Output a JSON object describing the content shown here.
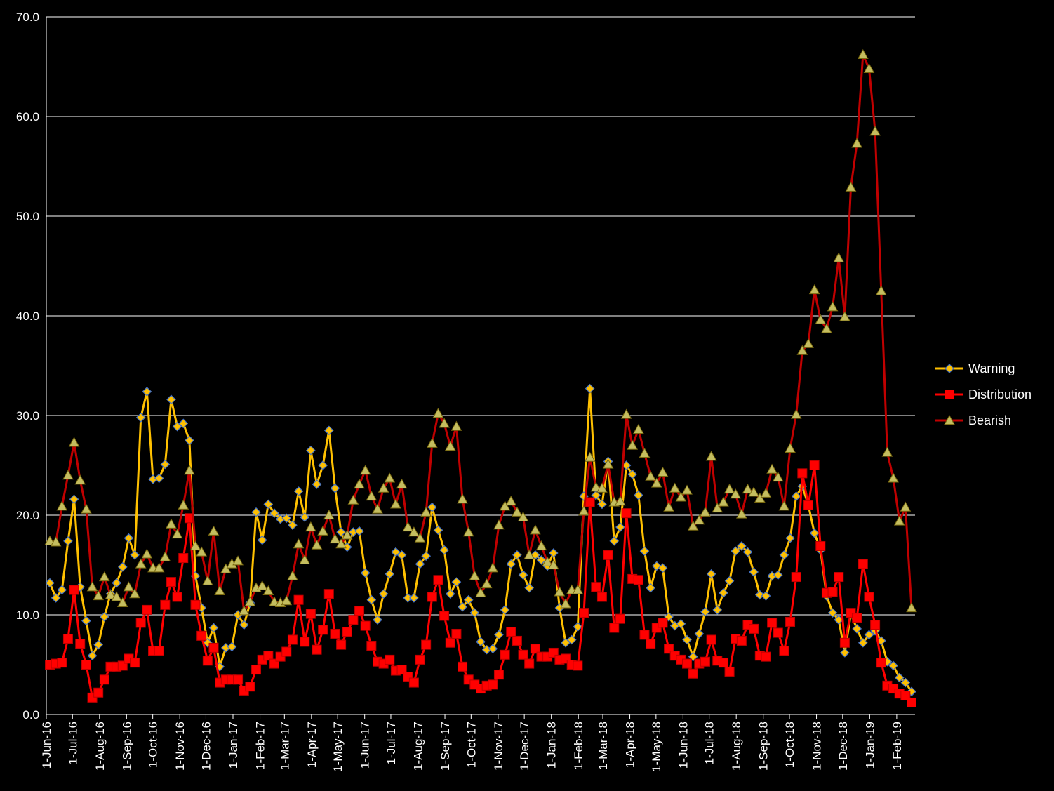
{
  "chart_data": {
    "type": "line",
    "title": "",
    "xlabel": "",
    "ylabel": "",
    "ylim": [
      0,
      70
    ],
    "yticks": [
      0,
      10,
      20,
      30,
      40,
      50,
      60,
      70
    ],
    "ytick_labels": [
      "0.0",
      "10.0",
      "20.0",
      "30.0",
      "40.0",
      "50.0",
      "60.0",
      "70.0"
    ],
    "grid": "horizontal",
    "legend": "right",
    "background": "#000000",
    "x_start": "2016-06-01",
    "x_end": "2019-02-22",
    "x_tick_labels": [
      "1-Jun-16",
      "1-Jul-16",
      "1-Aug-16",
      "1-Sep-16",
      "1-Oct-16",
      "1-Nov-16",
      "1-Dec-16",
      "1-Jan-17",
      "1-Feb-17",
      "1-Mar-17",
      "1-Apr-17",
      "1-May-17",
      "1-Jun-17",
      "1-Jul-17",
      "1-Aug-17",
      "1-Sep-17",
      "1-Oct-17",
      "1-Nov-17",
      "1-Dec-17",
      "1-Jan-18",
      "1-Feb-18",
      "1-Mar-18",
      "1-Apr-18",
      "1-May-18",
      "1-Jun-18",
      "1-Jul-18",
      "1-Aug-18",
      "1-Sep-18",
      "1-Oct-18",
      "1-Nov-18",
      "1-Dec-18",
      "1-Jan-19",
      "1-Feb-19"
    ],
    "x_tick_dates": [
      "2016-06-01",
      "2016-07-01",
      "2016-08-01",
      "2016-09-01",
      "2016-10-01",
      "2016-11-01",
      "2016-12-01",
      "2017-01-01",
      "2017-02-01",
      "2017-03-01",
      "2017-04-01",
      "2017-05-01",
      "2017-06-01",
      "2017-07-01",
      "2017-08-01",
      "2017-09-01",
      "2017-10-01",
      "2017-11-01",
      "2017-12-01",
      "2018-01-01",
      "2018-02-01",
      "2018-03-01",
      "2018-04-01",
      "2018-05-01",
      "2018-06-01",
      "2018-07-01",
      "2018-08-01",
      "2018-09-01",
      "2018-10-01",
      "2018-11-01",
      "2018-12-01",
      "2019-01-01",
      "2019-02-01"
    ],
    "series": [
      {
        "name": "Warning",
        "color": "#FFC000",
        "marker": "diamond",
        "values": [
          13.2,
          11.7,
          12.5,
          17.4,
          21.6,
          12.8,
          9.4,
          5.9,
          7.0,
          9.8,
          12.1,
          13.2,
          14.8,
          17.7,
          16.0,
          29.8,
          32.4,
          23.6,
          23.7,
          25.1,
          31.6,
          28.9,
          29.2,
          27.5,
          13.9,
          10.7,
          7.2,
          8.7,
          4.8,
          6.7,
          6.8,
          10.0,
          9.0,
          11.2,
          20.3,
          17.5,
          21.1,
          20.2,
          19.6,
          19.7,
          19.0,
          22.4,
          19.8,
          26.5,
          23.1,
          25.0,
          28.5,
          22.7,
          18.3,
          16.8,
          18.3,
          18.4,
          14.2,
          11.5,
          9.5,
          12.1,
          14.1,
          16.3,
          16.0,
          11.7,
          11.7,
          15.1,
          15.9,
          20.8,
          18.5,
          16.5,
          12.1,
          13.3,
          10.8,
          11.5,
          10.2,
          7.3,
          6.5,
          6.6,
          8.0,
          10.5,
          15.1,
          16.0,
          14.0,
          12.7,
          16.0,
          15.5,
          14.9,
          16.2,
          10.7,
          7.2,
          7.5,
          8.8,
          21.9,
          32.7,
          22.0,
          21.1,
          25.4,
          17.4,
          18.8,
          25.0,
          24.1,
          22.0,
          16.4,
          12.7,
          14.9,
          14.7,
          9.8,
          8.9,
          9.1,
          7.5,
          5.8,
          8.1,
          10.3,
          14.1,
          10.5,
          12.2,
          13.4,
          16.4,
          16.9,
          16.3,
          14.3,
          12.0,
          11.9,
          13.9,
          14.0,
          16.0,
          17.7,
          21.9,
          22.9,
          21.0,
          18.2,
          16.5,
          11.9,
          10.2,
          9.5,
          6.2,
          10.1,
          8.6,
          7.2,
          8.0,
          8.4,
          7.4,
          5.3,
          4.9,
          3.7,
          3.2,
          2.3
        ]
      },
      {
        "name": "Distribution",
        "color": "#FF0000",
        "marker": "square",
        "values": [
          5.0,
          5.1,
          5.2,
          7.6,
          12.5,
          7.1,
          5.0,
          1.7,
          2.2,
          3.5,
          4.8,
          4.8,
          4.9,
          5.6,
          5.2,
          9.2,
          10.5,
          6.4,
          6.4,
          11.0,
          13.3,
          11.8,
          15.7,
          19.7,
          11.0,
          7.9,
          5.4,
          6.7,
          3.2,
          3.5,
          3.5,
          3.5,
          2.4,
          2.8,
          4.5,
          5.5,
          5.9,
          5.1,
          5.8,
          6.3,
          7.5,
          11.5,
          7.3,
          10.1,
          6.5,
          8.5,
          12.1,
          8.1,
          7.0,
          8.3,
          9.5,
          10.4,
          8.9,
          6.9,
          5.3,
          5.1,
          5.5,
          4.4,
          4.5,
          3.8,
          3.2,
          5.5,
          7.0,
          11.8,
          13.5,
          9.9,
          7.2,
          8.1,
          4.8,
          3.5,
          3.0,
          2.6,
          2.9,
          3.0,
          4.0,
          6.0,
          8.3,
          7.4,
          6.0,
          5.1,
          6.6,
          5.8,
          5.8,
          6.2,
          5.5,
          5.6,
          5.0,
          4.9,
          10.2,
          21.3,
          12.8,
          11.8,
          16.0,
          8.7,
          9.6,
          20.2,
          13.6,
          13.5,
          8.0,
          7.1,
          8.7,
          9.2,
          6.6,
          5.9,
          5.5,
          5.1,
          4.1,
          5.1,
          5.3,
          7.5,
          5.4,
          5.2,
          4.3,
          7.6,
          7.4,
          9.0,
          8.6,
          5.9,
          5.8,
          9.2,
          8.2,
          6.4,
          9.3,
          13.8,
          24.2,
          21.0,
          25.0,
          16.9,
          12.2,
          12.3,
          13.8,
          7.2,
          10.2,
          9.7,
          15.1,
          11.8,
          9.0,
          5.2,
          2.9,
          2.6,
          2.1,
          1.9,
          1.2
        ]
      },
      {
        "name": "Bearish",
        "color": "#C00000",
        "marker": "triangle",
        "values": [
          17.4,
          17.3,
          20.9,
          24.0,
          27.3,
          23.5,
          20.6,
          12.8,
          11.9,
          13.8,
          12.0,
          11.8,
          11.2,
          12.8,
          12.1,
          15.1,
          16.1,
          14.7,
          14.7,
          15.8,
          19.1,
          18.1,
          21.0,
          24.5,
          16.9,
          16.3,
          13.4,
          18.4,
          12.4,
          14.6,
          15.1,
          15.4,
          10.4,
          11.3,
          12.7,
          12.9,
          12.4,
          11.3,
          11.2,
          11.4,
          13.9,
          17.1,
          15.5,
          18.8,
          17.0,
          18.4,
          20.0,
          17.6,
          17.1,
          18.0,
          21.5,
          23.1,
          24.5,
          21.9,
          20.6,
          22.7,
          23.7,
          21.1,
          23.1,
          18.8,
          18.3,
          17.7,
          20.3,
          27.2,
          30.2,
          29.2,
          26.9,
          28.9,
          21.6,
          18.3,
          13.9,
          12.2,
          13.1,
          14.7,
          19.0,
          20.9,
          21.4,
          20.3,
          19.8,
          16.0,
          18.5,
          16.9,
          15.3,
          15.0,
          12.3,
          11.1,
          12.5,
          12.5,
          20.4,
          25.8,
          22.8,
          22.7,
          25.1,
          21.3,
          21.4,
          30.1,
          27.0,
          28.6,
          26.2,
          23.9,
          23.2,
          24.3,
          20.8,
          22.7,
          21.8,
          22.5,
          18.9,
          19.5,
          20.3,
          25.9,
          20.7,
          21.3,
          22.6,
          22.1,
          20.1,
          22.6,
          22.3,
          21.7,
          22.2,
          24.6,
          23.8,
          20.9,
          26.7,
          30.1,
          36.5,
          37.2,
          42.6,
          39.6,
          38.7,
          40.9,
          45.8,
          39.9,
          52.9,
          57.3,
          66.2,
          64.8,
          58.5,
          42.5,
          26.3,
          23.7,
          19.4,
          20.8,
          10.7
        ]
      }
    ]
  }
}
